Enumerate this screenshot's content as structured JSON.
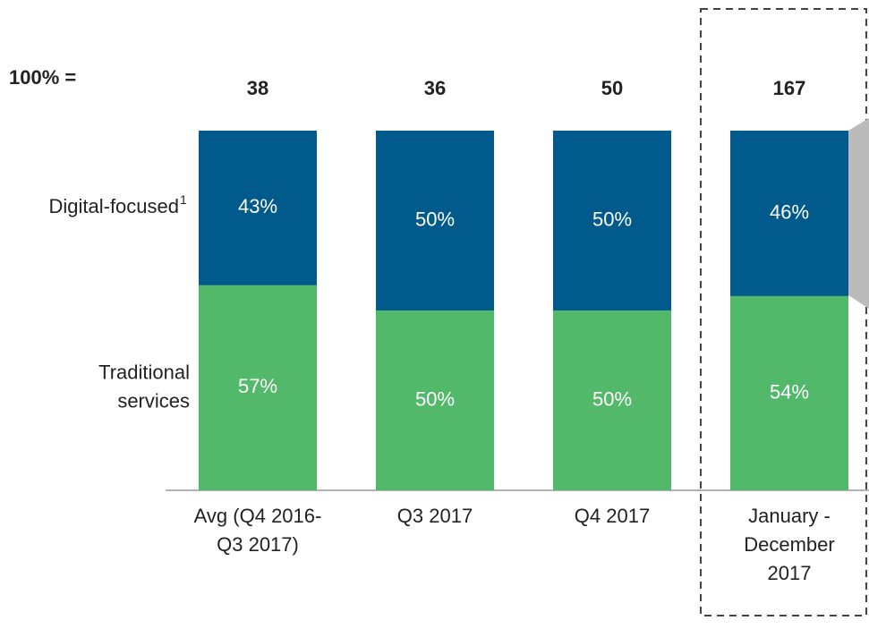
{
  "chart_data": {
    "type": "stacked_bar_100",
    "total_label": "100% =",
    "totals": [
      38,
      36,
      50,
      167
    ],
    "categories": [
      "Avg (Q4 2016-\nQ3 2017)",
      "Q3 2017",
      "Q4 2017",
      "January -\nDecember\n2017"
    ],
    "ylim": [
      0,
      100
    ],
    "series": [
      {
        "name": "Digital-focused",
        "footnote": "1",
        "color": "#005a8c",
        "values": [
          43,
          50,
          50,
          46
        ],
        "value_labels": [
          "43%",
          "50%",
          "50%",
          "46%"
        ]
      },
      {
        "name": "Traditional\nservices",
        "color": "#52b96a",
        "values": [
          57,
          50,
          50,
          54
        ],
        "value_labels": [
          "57%",
          "50%",
          "50%",
          "54%"
        ]
      }
    ]
  }
}
